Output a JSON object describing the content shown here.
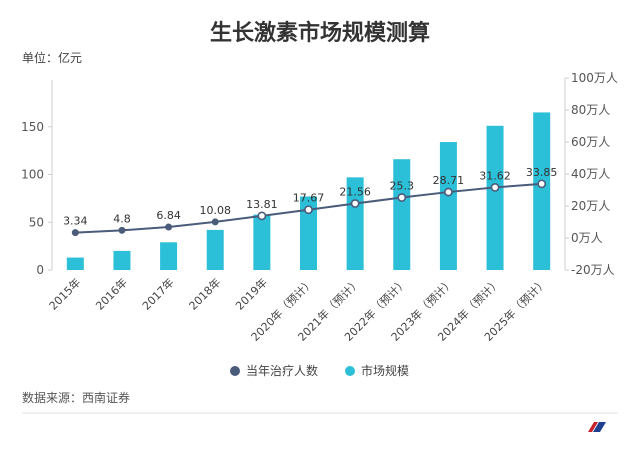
{
  "chart_data": {
    "type": "bar",
    "title": "生长激素市场规模测算",
    "unit_label": "单位：亿元",
    "categories": [
      "2015年",
      "2016年",
      "2017年",
      "2018年",
      "2019年",
      "2020年（预计）",
      "2021年（预计）",
      "2022年（预计）",
      "2023年（预计）",
      "2024年（预计）",
      "2025年（预计）"
    ],
    "series": [
      {
        "name": "市场规模",
        "kind": "bar",
        "axis": "left",
        "color": "#2BBFD8",
        "values": [
          13,
          20,
          29,
          42,
          58,
          77,
          97,
          116,
          134,
          151,
          165
        ]
      },
      {
        "name": "当年治疗人数",
        "kind": "line",
        "axis": "right",
        "color": "#4A5C7A",
        "values": [
          3.34,
          4.8,
          6.84,
          10.08,
          13.81,
          17.67,
          21.56,
          25.3,
          28.71,
          31.62,
          33.85
        ],
        "data_labels": [
          "3.34",
          "4.8",
          "6.84",
          "10.08",
          "13.81",
          "17.67",
          "21.56",
          "25.3",
          "28.71",
          "31.62",
          "33.85"
        ]
      }
    ],
    "left_axis": {
      "ylim": [
        0,
        200
      ],
      "ticks": [
        0,
        50,
        100,
        150
      ],
      "tick_labels": [
        "0",
        "50",
        "100",
        "150"
      ]
    },
    "right_axis": {
      "ylim": [
        -20,
        100
      ],
      "ticks": [
        -20,
        0,
        20,
        40,
        60,
        80,
        100
      ],
      "tick_labels": [
        "-20万人",
        "0万人",
        "20万人",
        "40万人",
        "60万人",
        "80万人",
        "100万人"
      ]
    },
    "grid": false,
    "legend": {
      "placement": "bottom",
      "entries": [
        {
          "label": "当年治疗人数",
          "color": "#4A5C7A"
        },
        {
          "label": "市场规模",
          "color": "#2BBFD8"
        }
      ]
    },
    "source": "数据来源：西南证券"
  }
}
